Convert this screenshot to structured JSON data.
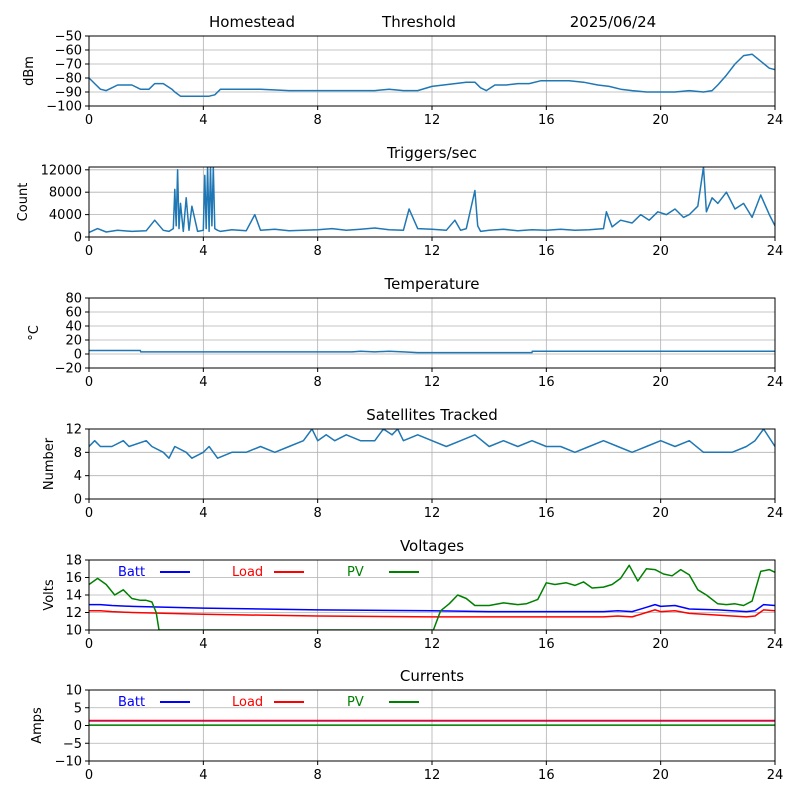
{
  "header": {
    "station": "Homestead",
    "mode": "Threshold",
    "date": "2025/06/24"
  },
  "colors": {
    "series_default": "#1f77b4",
    "batt": "#0000ff",
    "load": "#ff0000",
    "pv": "#008000",
    "grid": "#b0b0b0"
  },
  "chart_data": [
    {
      "type": "line",
      "title": "",
      "xlabel": "",
      "ylabel": "dBm",
      "xlim": [
        0,
        24
      ],
      "ylim": [
        -100,
        -50
      ],
      "xticks": [
        0,
        4,
        8,
        12,
        16,
        20,
        24
      ],
      "yticks": [
        -100,
        -90,
        -80,
        -70,
        -60,
        -50
      ],
      "grid": true,
      "series": [
        {
          "color": "#1f77b4",
          "x": [
            0,
            0.2,
            0.4,
            0.6,
            0.8,
            1.0,
            1.2,
            1.5,
            1.8,
            2.1,
            2.3,
            2.6,
            2.9,
            3.0,
            3.2,
            3.5,
            3.8,
            4.0,
            4.2,
            4.4,
            4.6,
            5.0,
            6.0,
            7.0,
            8.0,
            9.0,
            10.0,
            10.5,
            11.0,
            11.5,
            12.0,
            12.4,
            12.8,
            13.2,
            13.5,
            13.7,
            13.9,
            14.2,
            14.6,
            15.0,
            15.4,
            15.8,
            16.3,
            16.8,
            17.3,
            17.8,
            18.2,
            18.6,
            19.0,
            19.5,
            20.0,
            20.5,
            21.0,
            21.5,
            21.8,
            22.0,
            22.3,
            22.6,
            22.9,
            23.2,
            23.5,
            23.8,
            24
          ],
          "y": [
            -80,
            -84,
            -88,
            -89,
            -87,
            -85,
            -85,
            -85,
            -88,
            -88,
            -84,
            -84,
            -88,
            -90,
            -93,
            -93,
            -93,
            -93,
            -93,
            -92,
            -88,
            -88,
            -88,
            -89,
            -89,
            -89,
            -89,
            -88,
            -89,
            -89,
            -86,
            -85,
            -84,
            -83,
            -83,
            -87,
            -89,
            -85,
            -85,
            -84,
            -84,
            -82,
            -82,
            -82,
            -83,
            -85,
            -86,
            -88,
            -89,
            -90,
            -90,
            -90,
            -89,
            -90,
            -89,
            -85,
            -78,
            -70,
            -64,
            -63,
            -68,
            -73,
            -74
          ]
        }
      ]
    },
    {
      "type": "line",
      "title": "Triggers/sec",
      "xlabel": "",
      "ylabel": "Count",
      "xlim": [
        0,
        24
      ],
      "ylim": [
        0,
        12500
      ],
      "xticks": [
        0,
        4,
        8,
        12,
        16,
        20,
        24
      ],
      "yticks": [
        0,
        4000,
        8000,
        12000
      ],
      "grid": true,
      "series": [
        {
          "color": "#1f77b4",
          "x": [
            0,
            0.3,
            0.6,
            1.0,
            1.5,
            2.0,
            2.3,
            2.6,
            2.8,
            2.95,
            3.0,
            3.05,
            3.1,
            3.15,
            3.2,
            3.3,
            3.4,
            3.5,
            3.6,
            3.8,
            4.0,
            4.05,
            4.1,
            4.15,
            4.2,
            4.25,
            4.3,
            4.35,
            4.4,
            4.5,
            4.6,
            5.0,
            5.5,
            5.8,
            6.0,
            6.5,
            7.0,
            7.5,
            8.0,
            8.5,
            9.0,
            9.5,
            10.0,
            10.5,
            11.0,
            11.2,
            11.5,
            12.0,
            12.5,
            12.8,
            13.0,
            13.2,
            13.5,
            13.6,
            13.7,
            14.0,
            14.5,
            15.0,
            15.5,
            16.0,
            16.5,
            17.0,
            17.5,
            18.0,
            18.1,
            18.3,
            18.6,
            19.0,
            19.3,
            19.6,
            19.9,
            20.2,
            20.5,
            20.8,
            21.0,
            21.3,
            21.5,
            21.6,
            21.8,
            22.0,
            22.3,
            22.6,
            22.9,
            23.2,
            23.5,
            23.8,
            24
          ],
          "y": [
            800,
            1500,
            900,
            1200,
            1000,
            1100,
            3000,
            1200,
            1000,
            1500,
            8500,
            2000,
            12000,
            1500,
            6000,
            1000,
            7000,
            1200,
            5500,
            1000,
            1200,
            11000,
            1500,
            12500,
            1000,
            12500,
            2000,
            12500,
            1500,
            1200,
            1000,
            1300,
            1100,
            4000,
            1200,
            1400,
            1100,
            1200,
            1300,
            1500,
            1200,
            1400,
            1600,
            1300,
            1200,
            5000,
            1500,
            1400,
            1200,
            3000,
            1200,
            1500,
            8300,
            2000,
            1000,
            1200,
            1400,
            1100,
            1300,
            1200,
            1400,
            1200,
            1300,
            1500,
            4500,
            1800,
            3000,
            2500,
            4000,
            3000,
            4500,
            4000,
            5000,
            3500,
            4000,
            5500,
            12500,
            4500,
            7000,
            6000,
            8000,
            5000,
            6000,
            3500,
            7500,
            4000,
            2000
          ]
        }
      ]
    },
    {
      "type": "line",
      "title": "Temperature",
      "xlabel": "",
      "ylabel": "°C",
      "xlim": [
        0,
        24
      ],
      "ylim": [
        -20,
        80
      ],
      "xticks": [
        0,
        4,
        8,
        12,
        16,
        20,
        24
      ],
      "yticks": [
        -20,
        0,
        20,
        40,
        60,
        80
      ],
      "grid": true,
      "series": [
        {
          "color": "#1f77b4",
          "x": [
            0,
            1.0,
            1.8,
            1.81,
            4.0,
            8.0,
            9.2,
            9.5,
            10.0,
            10.5,
            11.0,
            11.5,
            12.0,
            14.0,
            15.5,
            15.51,
            20.0,
            24
          ],
          "y": [
            5,
            5,
            5,
            3,
            3,
            3,
            3,
            4,
            3,
            4,
            3,
            2,
            2,
            2,
            2,
            4,
            4,
            4
          ]
        }
      ]
    },
    {
      "type": "line",
      "title": "Satellites Tracked",
      "xlabel": "",
      "ylabel": "Number",
      "xlim": [
        0,
        24
      ],
      "ylim": [
        0,
        12
      ],
      "xticks": [
        0,
        4,
        8,
        12,
        16,
        20,
        24
      ],
      "yticks": [
        0,
        4,
        8,
        12
      ],
      "grid": true,
      "series": [
        {
          "color": "#1f77b4",
          "x": [
            0,
            0.2,
            0.4,
            0.8,
            1.2,
            1.4,
            2.0,
            2.2,
            2.6,
            2.8,
            3.0,
            3.4,
            3.6,
            4.0,
            4.2,
            4.5,
            5.0,
            5.5,
            6.0,
            6.5,
            7.0,
            7.5,
            7.8,
            8.0,
            8.3,
            8.6,
            9.0,
            9.5,
            10.0,
            10.3,
            10.6,
            10.8,
            11.0,
            11.5,
            12.0,
            12.5,
            13.0,
            13.5,
            14.0,
            14.5,
            15.0,
            15.5,
            16.0,
            16.5,
            17.0,
            17.5,
            18.0,
            18.5,
            19.0,
            19.5,
            20.0,
            20.5,
            21.0,
            21.5,
            22.0,
            22.5,
            23.0,
            23.3,
            23.6,
            24
          ],
          "y": [
            9,
            10,
            9,
            9,
            10,
            9,
            10,
            9,
            8,
            7,
            9,
            8,
            7,
            8,
            9,
            7,
            8,
            8,
            9,
            8,
            9,
            10,
            12,
            10,
            11,
            10,
            11,
            10,
            10,
            12,
            11,
            12,
            10,
            11,
            10,
            9,
            10,
            11,
            9,
            10,
            9,
            10,
            9,
            9,
            8,
            9,
            10,
            9,
            8,
            9,
            10,
            9,
            10,
            8,
            8,
            8,
            9,
            10,
            12,
            9
          ]
        }
      ]
    },
    {
      "type": "line",
      "title": "Voltages",
      "xlabel": "",
      "ylabel": "Volts",
      "xlim": [
        0,
        24
      ],
      "ylim": [
        10,
        18
      ],
      "xticks": [
        0,
        4,
        8,
        12,
        16,
        20,
        24
      ],
      "yticks": [
        10,
        12,
        14,
        16,
        18
      ],
      "grid": true,
      "legend": [
        "Batt",
        "Load",
        "PV"
      ],
      "series": [
        {
          "name": "Batt",
          "color": "#0000ff",
          "x": [
            0,
            0.4,
            0.8,
            1.5,
            4.0,
            8.0,
            12.0,
            14.0,
            16.0,
            18.0,
            18.5,
            19.0,
            19.5,
            19.8,
            20.0,
            20.5,
            21.0,
            22.0,
            23.0,
            23.3,
            23.6,
            24
          ],
          "y": [
            12.9,
            12.9,
            12.8,
            12.7,
            12.5,
            12.3,
            12.2,
            12.1,
            12.1,
            12.1,
            12.2,
            12.1,
            12.6,
            12.9,
            12.7,
            12.8,
            12.4,
            12.3,
            12.1,
            12.2,
            12.9,
            12.8
          ]
        },
        {
          "name": "Load",
          "color": "#ff0000",
          "x": [
            0,
            0.4,
            0.8,
            1.5,
            4.0,
            8.0,
            12.0,
            14.0,
            16.0,
            18.0,
            18.5,
            19.0,
            19.5,
            19.8,
            20.0,
            20.5,
            21.0,
            22.0,
            23.0,
            23.3,
            23.6,
            24
          ],
          "y": [
            12.2,
            12.2,
            12.1,
            12.0,
            11.8,
            11.6,
            11.5,
            11.5,
            11.5,
            11.5,
            11.6,
            11.5,
            12.0,
            12.3,
            12.1,
            12.2,
            11.9,
            11.7,
            11.5,
            11.6,
            12.3,
            12.2
          ]
        },
        {
          "name": "PV",
          "color": "#008000",
          "x": [
            0,
            0.3,
            0.6,
            0.9,
            1.2,
            1.5,
            1.8,
            2.0,
            2.2,
            2.35,
            2.45,
            12.05,
            12.3,
            12.6,
            12.9,
            13.2,
            13.5,
            14.0,
            14.5,
            15.0,
            15.3,
            15.7,
            16.0,
            16.3,
            16.7,
            17.0,
            17.3,
            17.6,
            18.0,
            18.3,
            18.6,
            18.9,
            19.2,
            19.5,
            19.8,
            20.1,
            20.4,
            20.7,
            21.0,
            21.3,
            21.6,
            22.0,
            22.3,
            22.6,
            22.9,
            23.2,
            23.5,
            23.8,
            24
          ],
          "y": [
            15.2,
            15.9,
            15.2,
            14.0,
            14.6,
            13.6,
            13.4,
            13.4,
            13.2,
            12.0,
            10.0,
            10.0,
            12.2,
            13.0,
            14.0,
            13.6,
            12.8,
            12.8,
            13.1,
            12.9,
            13.0,
            13.5,
            15.4,
            15.2,
            15.4,
            15.1,
            15.5,
            14.8,
            14.9,
            15.2,
            15.9,
            17.4,
            15.6,
            17.0,
            16.9,
            16.4,
            16.2,
            16.9,
            16.3,
            14.6,
            14.0,
            13.0,
            12.9,
            13.0,
            12.8,
            13.3,
            16.7,
            16.9,
            16.6
          ]
        }
      ]
    },
    {
      "type": "line",
      "title": "Currents",
      "xlabel": "",
      "ylabel": "Amps",
      "xlim": [
        0,
        24
      ],
      "ylim": [
        -10,
        10
      ],
      "xticks": [
        0,
        4,
        8,
        12,
        16,
        20,
        24
      ],
      "yticks": [
        -10,
        -5,
        0,
        5,
        10
      ],
      "grid": true,
      "legend": [
        "Batt",
        "Load",
        "PV"
      ],
      "series": [
        {
          "name": "Batt",
          "color": "#0000ff",
          "x": [
            0,
            24
          ],
          "y": [
            1.3,
            1.3
          ]
        },
        {
          "name": "Load",
          "color": "#ff0000",
          "x": [
            0,
            24
          ],
          "y": [
            1.4,
            1.4
          ]
        },
        {
          "name": "PV",
          "color": "#008000",
          "x": [
            0,
            24
          ],
          "y": [
            0.1,
            0.1
          ]
        }
      ]
    }
  ]
}
